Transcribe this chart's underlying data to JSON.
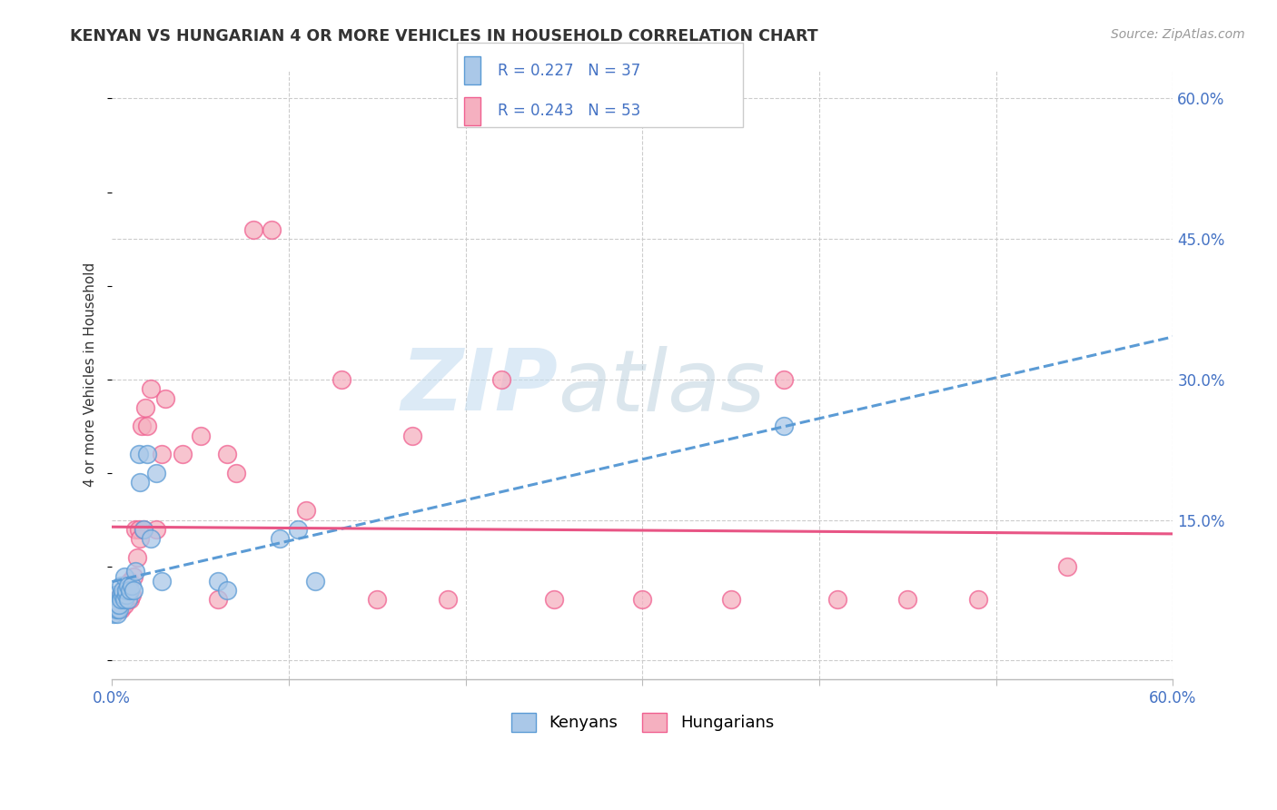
{
  "title": "KENYAN VS HUNGARIAN 4 OR MORE VEHICLES IN HOUSEHOLD CORRELATION CHART",
  "source": "Source: ZipAtlas.com",
  "ylabel": "4 or more Vehicles in Household",
  "yticks": [
    0.0,
    0.15,
    0.3,
    0.45,
    0.6
  ],
  "ytick_labels": [
    "",
    "15.0%",
    "30.0%",
    "45.0%",
    "60.0%"
  ],
  "xticks": [
    0.0,
    0.1,
    0.2,
    0.3,
    0.4,
    0.5,
    0.6
  ],
  "xmin": 0.0,
  "xmax": 0.6,
  "ymin": -0.02,
  "ymax": 0.63,
  "kenyan_color": "#aac8e8",
  "hungarian_color": "#f5b0c0",
  "kenyan_edge_color": "#5b9bd5",
  "hungarian_edge_color": "#f06090",
  "kenyan_line_color": "#5b9bd5",
  "hungarian_line_color": "#e85585",
  "kenyan_R": 0.227,
  "kenyan_N": 37,
  "hungarian_R": 0.243,
  "hungarian_N": 53,
  "legend_label_kenyan": "Kenyans",
  "legend_label_hungarian": "Hungarians",
  "watermark_zip": "ZIP",
  "watermark_atlas": "atlas",
  "background_color": "#ffffff",
  "grid_color": "#cccccc",
  "kenyan_x": [
    0.001,
    0.001,
    0.002,
    0.002,
    0.003,
    0.003,
    0.003,
    0.004,
    0.004,
    0.005,
    0.005,
    0.005,
    0.006,
    0.006,
    0.007,
    0.007,
    0.008,
    0.008,
    0.009,
    0.009,
    0.01,
    0.011,
    0.012,
    0.013,
    0.015,
    0.016,
    0.018,
    0.02,
    0.022,
    0.025,
    0.028,
    0.06,
    0.065,
    0.095,
    0.105,
    0.115,
    0.38
  ],
  "kenyan_y": [
    0.05,
    0.06,
    0.055,
    0.07,
    0.05,
    0.055,
    0.06,
    0.055,
    0.06,
    0.07,
    0.08,
    0.065,
    0.07,
    0.075,
    0.065,
    0.09,
    0.07,
    0.075,
    0.065,
    0.08,
    0.075,
    0.08,
    0.075,
    0.095,
    0.22,
    0.19,
    0.14,
    0.22,
    0.13,
    0.2,
    0.085,
    0.085,
    0.075,
    0.13,
    0.14,
    0.085,
    0.25
  ],
  "hungarian_x": [
    0.001,
    0.002,
    0.003,
    0.003,
    0.004,
    0.004,
    0.005,
    0.005,
    0.006,
    0.006,
    0.007,
    0.007,
    0.008,
    0.008,
    0.009,
    0.009,
    0.01,
    0.01,
    0.011,
    0.012,
    0.013,
    0.014,
    0.015,
    0.016,
    0.017,
    0.018,
    0.019,
    0.02,
    0.022,
    0.025,
    0.028,
    0.03,
    0.04,
    0.05,
    0.06,
    0.065,
    0.07,
    0.08,
    0.09,
    0.11,
    0.13,
    0.15,
    0.17,
    0.19,
    0.22,
    0.25,
    0.3,
    0.35,
    0.38,
    0.41,
    0.45,
    0.49,
    0.54
  ],
  "hungarian_y": [
    0.055,
    0.06,
    0.055,
    0.065,
    0.06,
    0.065,
    0.055,
    0.07,
    0.065,
    0.07,
    0.06,
    0.075,
    0.065,
    0.08,
    0.07,
    0.075,
    0.065,
    0.085,
    0.07,
    0.09,
    0.14,
    0.11,
    0.14,
    0.13,
    0.25,
    0.14,
    0.27,
    0.25,
    0.29,
    0.14,
    0.22,
    0.28,
    0.22,
    0.24,
    0.065,
    0.22,
    0.2,
    0.46,
    0.46,
    0.16,
    0.3,
    0.065,
    0.24,
    0.065,
    0.3,
    0.065,
    0.065,
    0.065,
    0.3,
    0.065,
    0.065,
    0.065,
    0.1
  ]
}
